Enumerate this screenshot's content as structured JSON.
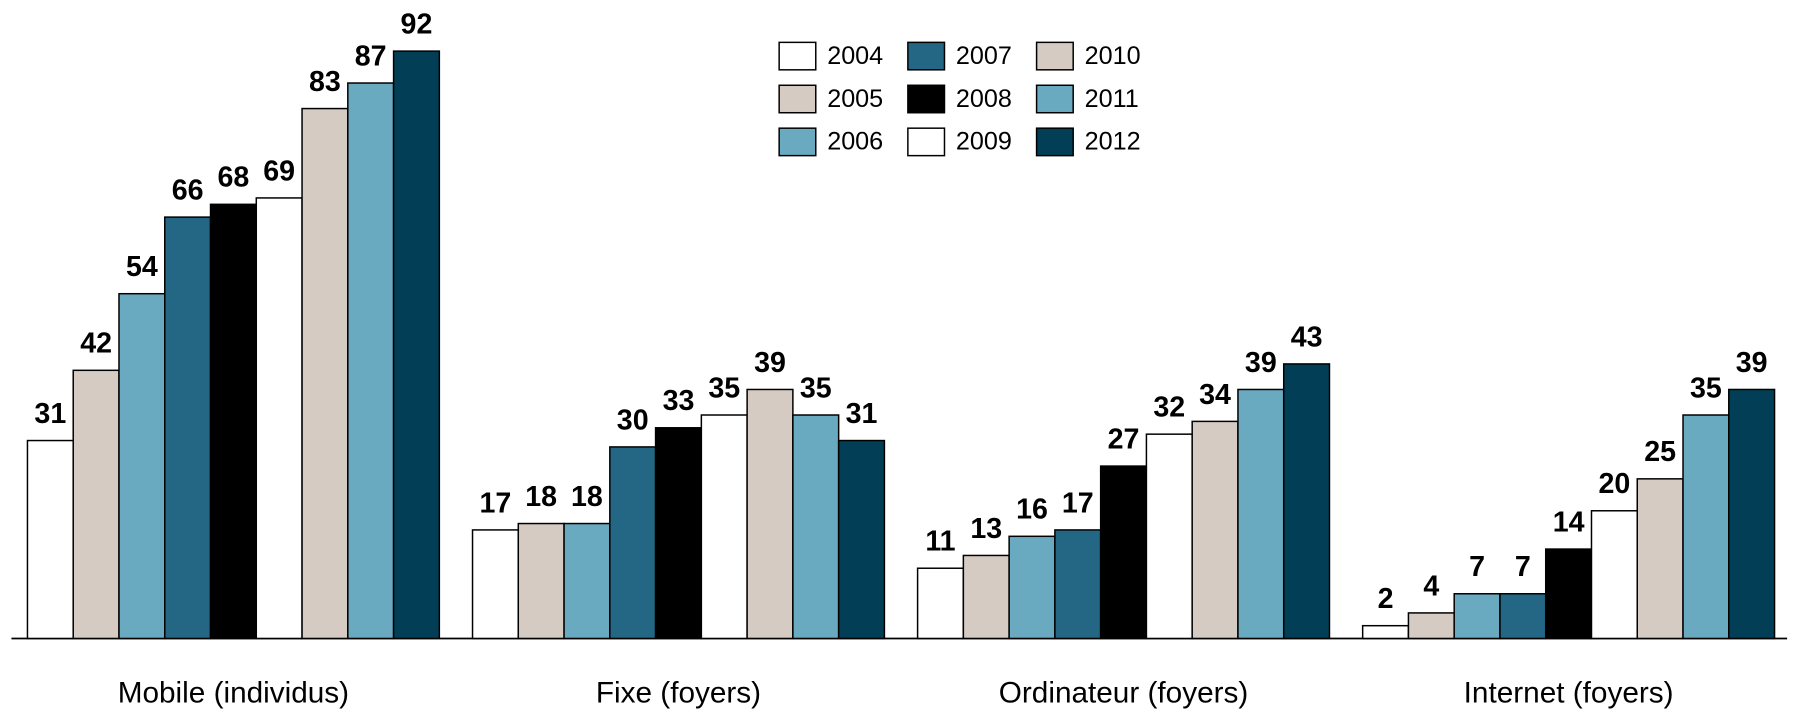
{
  "chart_data": {
    "type": "bar",
    "categories": [
      "Mobile (individus)",
      "Fixe (foyers)",
      "Ordinateur (foyers)",
      "Internet (foyers)"
    ],
    "series": [
      {
        "name": "2004",
        "color": "#ffffff",
        "values": [
          31,
          17,
          11,
          2
        ]
      },
      {
        "name": "2005",
        "color": "#d6cbc3",
        "values": [
          42,
          18,
          13,
          4
        ]
      },
      {
        "name": "2006",
        "color": "#6aaac1",
        "values": [
          54,
          18,
          16,
          7
        ]
      },
      {
        "name": "2007",
        "color": "#246785",
        "values": [
          66,
          30,
          17,
          7
        ]
      },
      {
        "name": "2008",
        "color": "#000000",
        "values": [
          68,
          33,
          27,
          14
        ]
      },
      {
        "name": "2009",
        "color": "#ffffff",
        "values": [
          69,
          35,
          32,
          20
        ]
      },
      {
        "name": "2010",
        "color": "#d6cbc3",
        "values": [
          83,
          39,
          34,
          25
        ]
      },
      {
        "name": "2011",
        "color": "#6aaac1",
        "values": [
          87,
          35,
          39,
          35
        ]
      },
      {
        "name": "2012",
        "color": "#023f56",
        "values": [
          92,
          31,
          43,
          39
        ]
      }
    ],
    "ylim": [
      0,
      100
    ]
  }
}
